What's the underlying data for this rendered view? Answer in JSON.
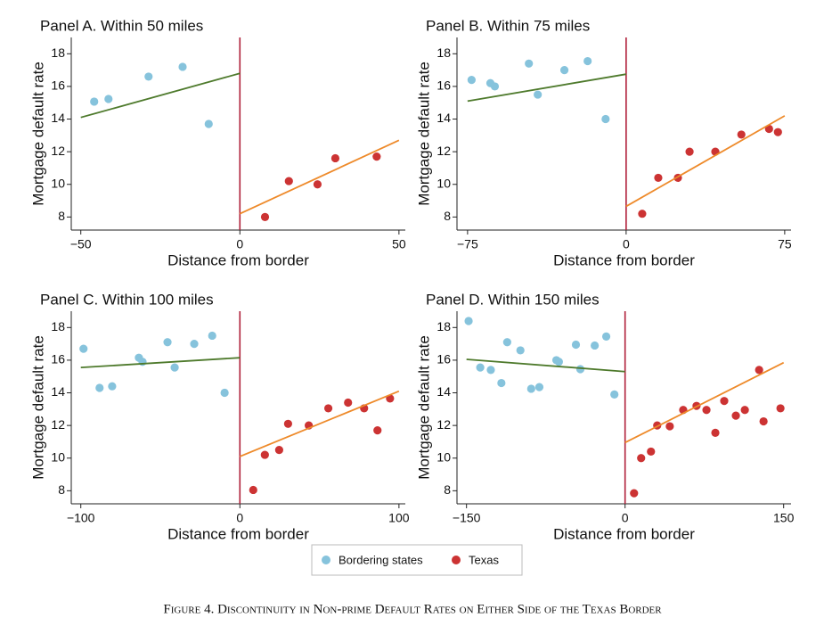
{
  "chart_data": [
    {
      "type": "scatter",
      "title": "Panel A. Within 50 miles",
      "xlabel": "Distance from border",
      "ylabel": "Mortgage default rate",
      "xlim": [
        -53,
        52
      ],
      "xticks": [
        {
          "value": -50,
          "label": "−50"
        },
        0,
        50
      ],
      "ylim": [
        7.2,
        19
      ],
      "yticks": [
        8,
        10,
        12,
        14,
        16,
        18
      ],
      "cutoff": 0,
      "cutoff_color": "#b0203a",
      "series": [
        {
          "color": "#86c3dc",
          "x": [
            -45.8,
            -41.3,
            -28.7,
            -18,
            -9.8
          ],
          "values": [
            15.07,
            15.23,
            16.6,
            17.2,
            13.7
          ],
          "fit": {
            "color": "#4e7a2c",
            "x": [
              -50,
              0
            ],
            "values": [
              14.1,
              16.8
            ]
          }
        },
        {
          "color": "#cc3333",
          "x": [
            7.9,
            15.4,
            24.4,
            30,
            43
          ],
          "values": [
            8.0,
            10.2,
            10.0,
            11.6,
            11.7
          ],
          "fit": {
            "color": "#ee8a2a",
            "x": [
              0,
              50
            ],
            "values": [
              8.2,
              12.7
            ]
          }
        }
      ]
    },
    {
      "type": "scatter",
      "title": "Panel B. Within 75 miles",
      "xlabel": "Distance from border",
      "ylabel": "Mortgage default rate",
      "xlim": [
        -80,
        78
      ],
      "xticks": [
        {
          "value": -75,
          "label": "−75"
        },
        0,
        75
      ],
      "ylim": [
        7.2,
        19
      ],
      "yticks": [
        8,
        10,
        12,
        14,
        16,
        18
      ],
      "cutoff": 0,
      "cutoff_color": "#b0203a",
      "series": [
        {
          "color": "#86c3dc",
          "x": [
            -73.1,
            -64.2,
            -62.1,
            -46,
            -41.8,
            -29.2,
            -18.2,
            -9.7
          ],
          "values": [
            16.4,
            16.2,
            16.0,
            17.4,
            15.5,
            17.0,
            17.55,
            14.0
          ],
          "fit": {
            "color": "#4e7a2c",
            "x": [
              -75,
              0
            ],
            "values": [
              15.1,
              16.75
            ]
          }
        },
        {
          "color": "#cc3333",
          "x": [
            7.6,
            15.2,
            24.5,
            30,
            42.2,
            54.5,
            67.6,
            71.8
          ],
          "values": [
            8.2,
            10.4,
            10.4,
            12.0,
            12.0,
            13.05,
            13.4,
            13.2
          ],
          "fit": {
            "color": "#ee8a2a",
            "x": [
              0,
              75
            ],
            "values": [
              8.65,
              14.2
            ]
          }
        }
      ]
    },
    {
      "type": "scatter",
      "title": "Panel C. Within 100 miles",
      "xlabel": "Distance from border",
      "ylabel": "Mortgage default rate",
      "xlim": [
        -106,
        104
      ],
      "xticks": [
        {
          "value": -100,
          "label": "−100"
        },
        0,
        100
      ],
      "ylim": [
        7.2,
        19
      ],
      "yticks": [
        8,
        10,
        12,
        14,
        16,
        18
      ],
      "cutoff": 0,
      "cutoff_color": "#b0203a",
      "series": [
        {
          "color": "#86c3dc",
          "x": [
            -98.3,
            -88.2,
            -80.3,
            -63.5,
            -61.2,
            -45.5,
            -41,
            -28.7,
            -17.4,
            -9.6
          ],
          "values": [
            16.7,
            14.3,
            14.4,
            16.15,
            15.9,
            17.1,
            15.55,
            17.0,
            17.5,
            14.0
          ],
          "fit": {
            "color": "#4e7a2c",
            "x": [
              -100,
              0
            ],
            "values": [
              15.55,
              16.15
            ]
          }
        },
        {
          "color": "#cc3333",
          "x": [
            8.4,
            15.7,
            24.7,
            30.3,
            43.3,
            55.6,
            68,
            78.1,
            86.5,
            94.4
          ],
          "values": [
            8.05,
            10.2,
            10.5,
            12.1,
            12.0,
            13.05,
            13.4,
            13.05,
            11.7,
            13.65
          ],
          "fit": {
            "color": "#ee8a2a",
            "x": [
              0,
              100
            ],
            "values": [
              10.1,
              14.1
            ]
          }
        }
      ]
    },
    {
      "type": "scatter",
      "title": "Panel D. Within 150 miles",
      "xlabel": "Distance from border",
      "ylabel": "Mortgage default rate",
      "xlim": [
        -159,
        157
      ],
      "xticks": [
        {
          "value": -150,
          "label": "−150"
        },
        0,
        150
      ],
      "ylim": [
        7.2,
        19
      ],
      "yticks": [
        8,
        10,
        12,
        14,
        16,
        18
      ],
      "cutoff": 0,
      "cutoff_color": "#b0203a",
      "series": [
        {
          "color": "#86c3dc",
          "x": [
            -148,
            -137,
            -127,
            -117,
            -111.5,
            -99,
            -88.8,
            -81.1,
            -65,
            -62.6,
            -46.5,
            -42.3,
            -28.7,
            -17.8,
            -10.1
          ],
          "values": [
            18.4,
            15.55,
            15.4,
            14.6,
            17.1,
            16.6,
            14.25,
            14.35,
            16.0,
            15.9,
            16.95,
            15.45,
            16.9,
            17.45,
            13.9
          ],
          "fit": {
            "color": "#4e7a2c",
            "x": [
              -150,
              0
            ],
            "values": [
              16.05,
              15.3
            ]
          }
        },
        {
          "color": "#cc3333",
          "x": [
            8.5,
            15.2,
            24.5,
            30.4,
            42.3,
            55,
            67.6,
            77,
            85.4,
            93.8,
            104.8,
            113.3,
            126.8,
            131,
            147
          ],
          "values": [
            7.85,
            10.0,
            10.4,
            12.0,
            11.95,
            12.95,
            13.2,
            12.95,
            11.55,
            13.5,
            12.6,
            12.95,
            15.4,
            12.25,
            13.05
          ],
          "fit": {
            "color": "#ee8a2a",
            "x": [
              0,
              150
            ],
            "values": [
              10.95,
              15.85
            ]
          }
        }
      ]
    }
  ],
  "legend": {
    "entries": [
      "Bordering states",
      "Texas"
    ]
  },
  "caption": "Figure 4. Discontinuity in Non-prime Default Rates on Either Side of the Texas Border"
}
